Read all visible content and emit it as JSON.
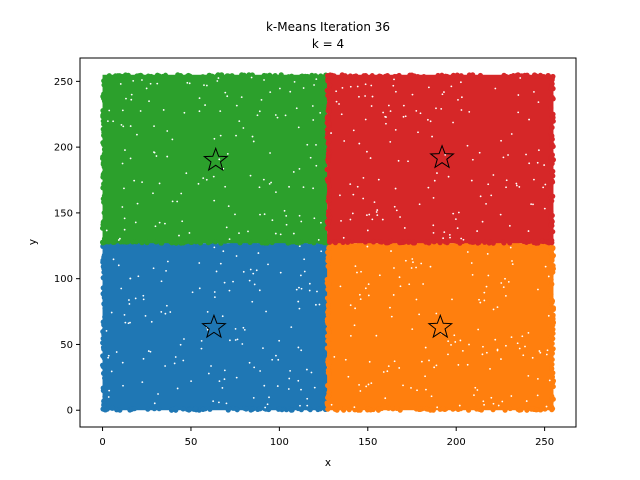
{
  "chart_data": {
    "type": "scatter",
    "title": "k-Means Iteration 36",
    "subtitle": "k = 4",
    "xlabel": "x",
    "ylabel": "y",
    "xlim": [
      -12.75,
      267.75
    ],
    "ylim": [
      -12.75,
      267.75
    ],
    "xticks": [
      0,
      50,
      100,
      150,
      200,
      250
    ],
    "yticks": [
      0,
      50,
      100,
      150,
      200,
      250
    ],
    "grid": false,
    "clusters": [
      {
        "color": "#1f77b4",
        "x_range": [
          0,
          127
        ],
        "y_range": [
          0,
          127
        ],
        "centroid": [
          63,
          63
        ]
      },
      {
        "color": "#ff7f0e",
        "x_range": [
          127,
          255
        ],
        "y_range": [
          0,
          127
        ],
        "centroid": [
          191,
          63
        ]
      },
      {
        "color": "#2ca02c",
        "x_range": [
          0,
          127
        ],
        "y_range": [
          127,
          255
        ],
        "centroid": [
          64,
          190
        ]
      },
      {
        "color": "#d62728",
        "x_range": [
          127,
          255
        ],
        "y_range": [
          127,
          255
        ],
        "centroid": [
          192,
          192
        ]
      }
    ],
    "centroid_marker": "star"
  }
}
